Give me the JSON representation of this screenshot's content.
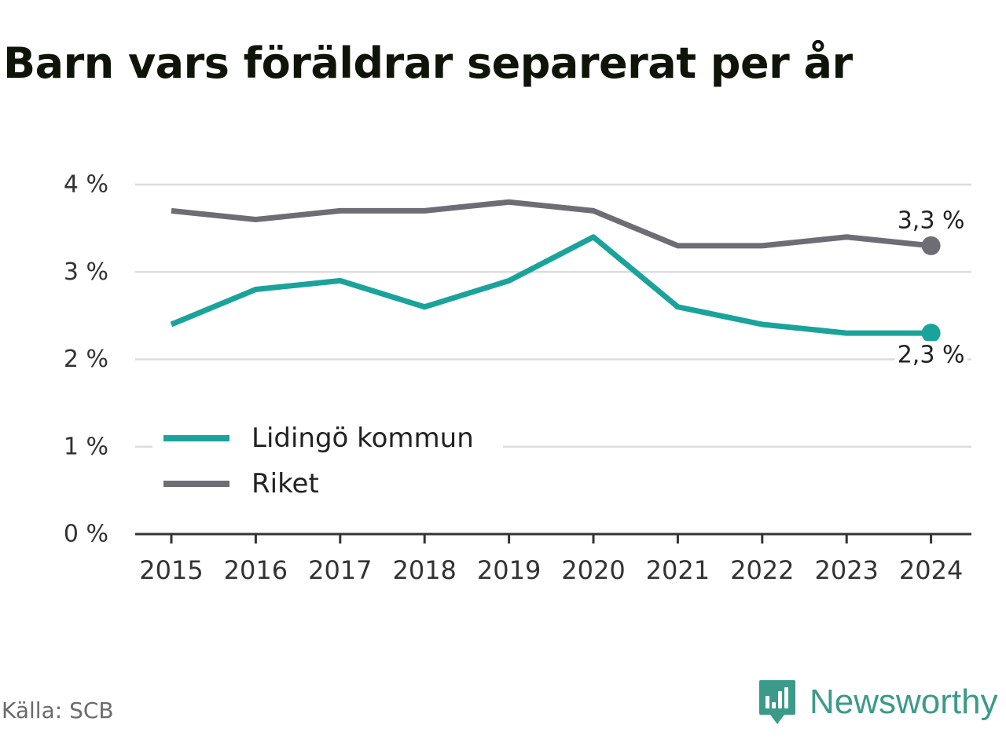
{
  "title": "Barn vars föräldrar separerat per år",
  "source": "Källa: SCB",
  "brand": {
    "name": "Newsworthy",
    "icon": "newsworthy-logo-icon",
    "color": "#3c9a8a"
  },
  "chart_data": {
    "type": "line",
    "title": "Barn vars föräldrar separerat per år",
    "x": [
      "2015",
      "2016",
      "2017",
      "2018",
      "2019",
      "2020",
      "2021",
      "2022",
      "2023",
      "2024"
    ],
    "ylim": [
      0,
      4
    ],
    "yticks": [
      {
        "value": 0,
        "label": "0 %"
      },
      {
        "value": 1,
        "label": "1 %"
      },
      {
        "value": 2,
        "label": "2 %"
      },
      {
        "value": 3,
        "label": "3 %"
      },
      {
        "value": 4,
        "label": "4 %"
      }
    ],
    "grid": true,
    "legend_position": "bottom-left",
    "series": [
      {
        "name": "Lidingö kommun",
        "color": "#1aa39a",
        "values": [
          2.4,
          2.8,
          2.9,
          2.6,
          2.9,
          3.4,
          2.6,
          2.4,
          2.3,
          2.3
        ],
        "end_label": "2,3 %"
      },
      {
        "name": "Riket",
        "color": "#6e6d75",
        "values": [
          3.7,
          3.6,
          3.7,
          3.7,
          3.8,
          3.7,
          3.3,
          3.3,
          3.4,
          3.3
        ],
        "end_label": "3,3 %"
      }
    ]
  }
}
